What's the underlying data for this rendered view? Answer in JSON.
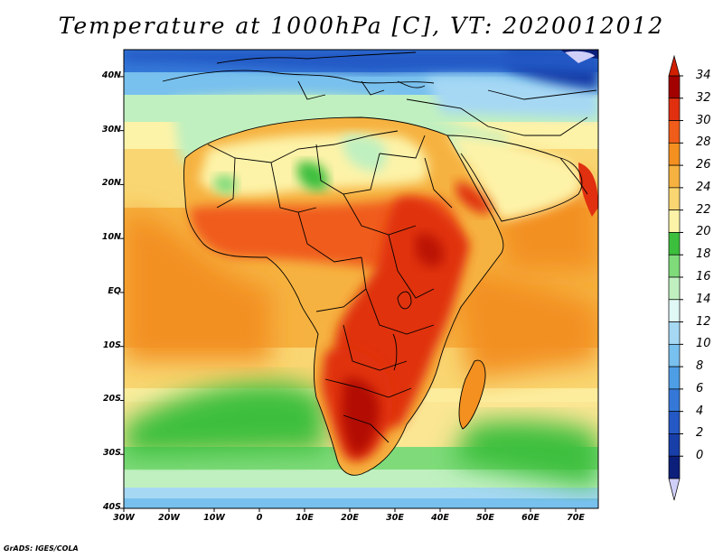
{
  "title": "Temperature at 1000hPa [C], VT: 2020012012",
  "map": {
    "lon_range": [
      -30,
      75
    ],
    "lat_range": [
      -40,
      45
    ],
    "lat_ticks": [
      {
        "value": 40,
        "label": "40N"
      },
      {
        "value": 30,
        "label": "30N"
      },
      {
        "value": 20,
        "label": "20N"
      },
      {
        "value": 10,
        "label": "10N"
      },
      {
        "value": 0,
        "label": "EQ"
      },
      {
        "value": -10,
        "label": "10S"
      },
      {
        "value": -20,
        "label": "20S"
      },
      {
        "value": -30,
        "label": "30S"
      },
      {
        "value": -40,
        "label": "40S"
      }
    ],
    "lon_ticks": [
      {
        "value": -30,
        "label": "30W"
      },
      {
        "value": -20,
        "label": "20W"
      },
      {
        "value": -10,
        "label": "10W"
      },
      {
        "value": 0,
        "label": "0"
      },
      {
        "value": 10,
        "label": "10E"
      },
      {
        "value": 20,
        "label": "20E"
      },
      {
        "value": 30,
        "label": "30E"
      },
      {
        "value": 40,
        "label": "40E"
      },
      {
        "value": 50,
        "label": "50E"
      },
      {
        "value": 60,
        "label": "60E"
      },
      {
        "value": 70,
        "label": "70E"
      }
    ]
  },
  "colorbar": {
    "labels": [
      "34",
      "32",
      "30",
      "28",
      "26",
      "24",
      "22",
      "20",
      "18",
      "16",
      "14",
      "12",
      "10",
      "8",
      "6",
      "4",
      "2",
      "0"
    ],
    "colors": [
      "#a30000",
      "#e03010",
      "#f05c1a",
      "#f39020",
      "#f6b240",
      "#f9d672",
      "#fdf3a8",
      "#3cbf3c",
      "#7fdb7a",
      "#c0f0c0",
      "#dff8f6",
      "#a6d8f4",
      "#78c0ee",
      "#4e9ee6",
      "#3578d8",
      "#2458c4",
      "#183ea8",
      "#0c1f7a"
    ],
    "over_color": "#d02000",
    "under_color": "#cfcff8"
  },
  "credit": "GrADS: IGES/COLA"
}
